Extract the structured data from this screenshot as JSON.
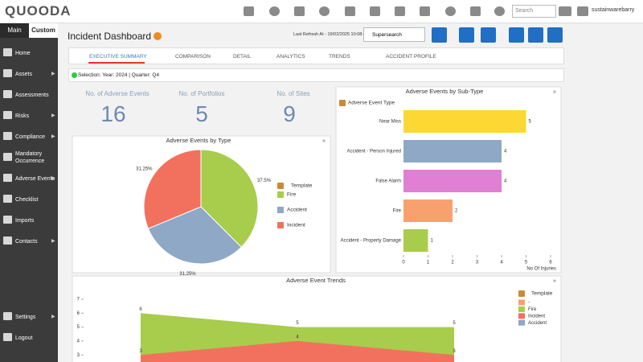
{
  "header": {
    "logo": "QUOODA",
    "search_placeholder": "Search",
    "user": "sustainwarebarry"
  },
  "sidebar": {
    "tabs": [
      "Main",
      "Custom"
    ],
    "items": [
      "Home",
      "Assets",
      "Assessments",
      "Risks",
      "Compliance",
      "Mandatory Occurrence",
      "Adverse Events",
      "Checklist",
      "Imports",
      "Contacts"
    ],
    "bottom_items": [
      "Settings",
      "Logout"
    ]
  },
  "toolbar": {
    "title": "Incident Dashboard",
    "last_refresh": "Last Refresh At - 19/02/2025 10:08:48",
    "supersearch": "Supersearch"
  },
  "tabs": [
    "EXECUTIVE SUMMARY",
    "COMPARISON",
    "DETAIL",
    "ANALYTICS",
    "TRENDS",
    "ACCIDENT PROFILE"
  ],
  "selection": "Selection: Year: 2024 | Quarter: Q4",
  "kpis": [
    {
      "label": "No. of Adverse Events",
      "value": 16
    },
    {
      "label": "No. of Portfolios",
      "value": 5
    },
    {
      "label": "No. of Sites",
      "value": 9
    }
  ],
  "chart_data": [
    {
      "type": "pie",
      "title": "Adverse Events by Type",
      "legend_title": "Template",
      "categories": [
        "Fire",
        "Accident",
        "Incident"
      ],
      "values": [
        37.5,
        31.25,
        31.25
      ],
      "value_labels": [
        "37.5%",
        "31.25%",
        "31.25%"
      ],
      "colors": [
        "#a8cc4c",
        "#8ea8c6",
        "#f2715e"
      ]
    },
    {
      "type": "hbar",
      "title": "Adverse Events by Sub-Type",
      "legend_title": "Adverse Event Type",
      "categories": [
        "Near Miss",
        "Accident - Person Injured",
        "False Alarm",
        "Fire",
        "Accident - Property Damage"
      ],
      "values": [
        5,
        4,
        4,
        2,
        1
      ],
      "colors": [
        "#fdd835",
        "#8ea8c6",
        "#e07fd4",
        "#f9a06f",
        "#a8cc4c"
      ],
      "xlim": [
        0,
        6
      ],
      "xticks": [
        0,
        1,
        2,
        3,
        4,
        5,
        6
      ],
      "xlabel": "No Of Injuries"
    },
    {
      "type": "area",
      "title": "Adverse Event Trends",
      "legend_title": "Template",
      "categories": [
        null,
        null,
        null
      ],
      "series": [
        {
          "name": "-",
          "color": "#f9a06f",
          "values": [
            null,
            null,
            null
          ]
        },
        {
          "name": "Fire",
          "color": "#a8cc4c",
          "values": [
            6,
            5,
            5
          ]
        },
        {
          "name": "Incident",
          "color": "#f2715e",
          "values": [
            3,
            4,
            3
          ]
        },
        {
          "name": "Accident",
          "color": "#8ea8c6",
          "values": [
            null,
            null,
            null
          ]
        }
      ],
      "ylim": [
        2,
        7
      ],
      "yticks": [
        3,
        4,
        5,
        6,
        7
      ]
    }
  ]
}
